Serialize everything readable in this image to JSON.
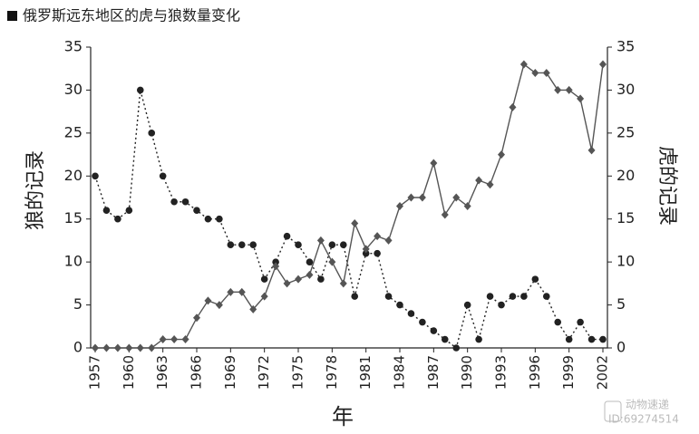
{
  "chart_data": {
    "type": "line",
    "title": "俄罗斯远东地区的虎与狼数量变化",
    "x_label": "年",
    "y_label": "狼的记录",
    "y2_label": "虎的记录",
    "x": [
      1957,
      1958,
      1959,
      1960,
      1961,
      1962,
      1963,
      1964,
      1965,
      1966,
      1967,
      1968,
      1969,
      1970,
      1971,
      1972,
      1973,
      1974,
      1975,
      1976,
      1977,
      1978,
      1979,
      1980,
      1981,
      1982,
      1983,
      1984,
      1985,
      1986,
      1987,
      1988,
      1989,
      1990,
      1991,
      1992,
      1993,
      1994,
      1995,
      1996,
      1997,
      1998,
      1999,
      2000,
      2001,
      2002
    ],
    "xlim": [
      1957,
      2002
    ],
    "xticks": [
      1957,
      1960,
      1963,
      1966,
      1969,
      1972,
      1975,
      1978,
      1981,
      1984,
      1987,
      1990,
      1993,
      1996,
      1999,
      2002
    ],
    "ylim": [
      0,
      35
    ],
    "yticks": [
      0,
      5,
      10,
      15,
      20,
      25,
      30,
      35
    ],
    "y2lim": [
      0,
      35
    ],
    "y2ticks": [
      0,
      5,
      10,
      15,
      20,
      25,
      30,
      35
    ],
    "series": [
      {
        "name": "狼",
        "color": "#222222",
        "marker": "circle",
        "dash": "dotted",
        "values": [
          20,
          16,
          15,
          16,
          30,
          25,
          20,
          17,
          17,
          16,
          15,
          15,
          12,
          12,
          12,
          8,
          10,
          13,
          12,
          10,
          8,
          12,
          12,
          6,
          11,
          11,
          6,
          5,
          4,
          3,
          2,
          1,
          0,
          5,
          1,
          6,
          5,
          6,
          6,
          8,
          6,
          3,
          1,
          3,
          1,
          1
        ]
      },
      {
        "name": "虎",
        "color": "#555555",
        "marker": "diamond",
        "dash": "solid",
        "axis": "y2",
        "values": [
          0,
          0,
          0,
          0,
          0,
          0,
          1,
          1,
          1,
          3.5,
          5.5,
          5,
          6.5,
          6.5,
          4.5,
          6,
          9.5,
          7.5,
          8,
          8.5,
          12.5,
          10,
          7.5,
          14.5,
          11.5,
          13,
          12.5,
          16.5,
          17.5,
          17.5,
          21.5,
          15.5,
          17.5,
          16.5,
          19.5,
          19,
          22.5,
          28,
          33,
          32,
          32,
          30,
          30,
          29,
          23,
          33
        ]
      }
    ],
    "watermark": {
      "name": "动物速递",
      "id": "ID:69274514"
    }
  }
}
